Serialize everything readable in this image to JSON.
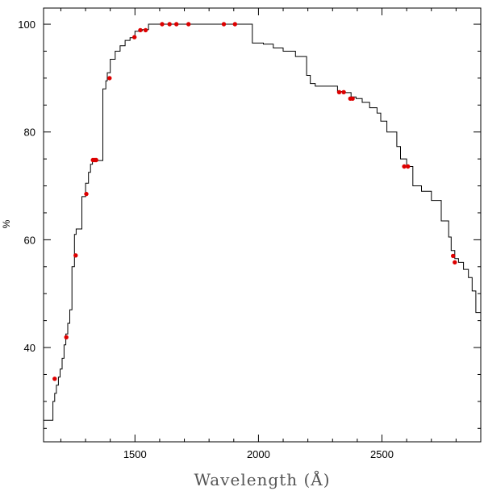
{
  "chart_data": {
    "type": "line",
    "title": "",
    "xlabel": "Wavelength (Å)",
    "ylabel": "%",
    "xlim": [
      1130,
      2900
    ],
    "ylim": [
      22.5,
      103
    ],
    "x_ticks": [
      1500,
      2000,
      2500
    ],
    "y_ticks": [
      40,
      60,
      80,
      100
    ],
    "grid": false,
    "legend": "none",
    "colors": {
      "line": "#000000",
      "points": "#dd0000",
      "frame": "#000000"
    },
    "series": [
      {
        "style": "step",
        "x": [
          1130,
          1168,
          1175,
          1182,
          1190,
          1197,
          1205,
          1213,
          1220,
          1228,
          1236,
          1245,
          1255,
          1262,
          1270,
          1285,
          1300,
          1312,
          1320,
          1328,
          1340,
          1370,
          1382,
          1388,
          1400,
          1420,
          1440,
          1460,
          1480,
          1500,
          1515,
          1530,
          1555,
          1600,
          1700,
          1800,
          1900,
          1975,
          2020,
          2060,
          2100,
          2150,
          2195,
          2210,
          2230,
          2280,
          2320,
          2345,
          2375,
          2395,
          2420,
          2450,
          2480,
          2495,
          2520,
          2560,
          2575,
          2600,
          2625,
          2660,
          2700,
          2740,
          2770,
          2780,
          2795,
          2810,
          2830,
          2850,
          2865,
          2880,
          2900
        ],
        "y": [
          26.5,
          30,
          31.5,
          33,
          34.5,
          36,
          38,
          40.5,
          42.5,
          44.5,
          47,
          55,
          61,
          62,
          62,
          68,
          70.5,
          72.5,
          74,
          74.7,
          74.7,
          88,
          89.5,
          91,
          93.5,
          95,
          96,
          97,
          97.5,
          98.7,
          98.8,
          99,
          100,
          100,
          100,
          100,
          100,
          96.5,
          96.3,
          95.6,
          95,
          94,
          90.5,
          89,
          88.5,
          88.5,
          87.5,
          87.3,
          86.5,
          86.2,
          85.5,
          84.5,
          83.5,
          82,
          80,
          77.3,
          75,
          73.6,
          70,
          69,
          67.3,
          63.5,
          60.5,
          58,
          56.5,
          55.8,
          54.5,
          53,
          50.5,
          46.5,
          45.5
        ]
      },
      {
        "style": "points",
        "x": [
          1175,
          1222,
          1260,
          1303,
          1330,
          1338,
          1343,
          1397,
          1498,
          1522,
          1543,
          1610,
          1640,
          1668,
          1717,
          1860,
          1905,
          2327,
          2345,
          2372,
          2381,
          2590,
          2605,
          2788,
          2795
        ],
        "y": [
          34.2,
          41.9,
          57.1,
          68.5,
          74.8,
          74.8,
          74.8,
          90.0,
          97.6,
          98.9,
          98.9,
          100,
          100,
          100,
          100,
          100,
          100,
          87.4,
          87.4,
          86.2,
          86.2,
          73.6,
          73.6,
          57.0,
          55.8
        ]
      }
    ]
  }
}
